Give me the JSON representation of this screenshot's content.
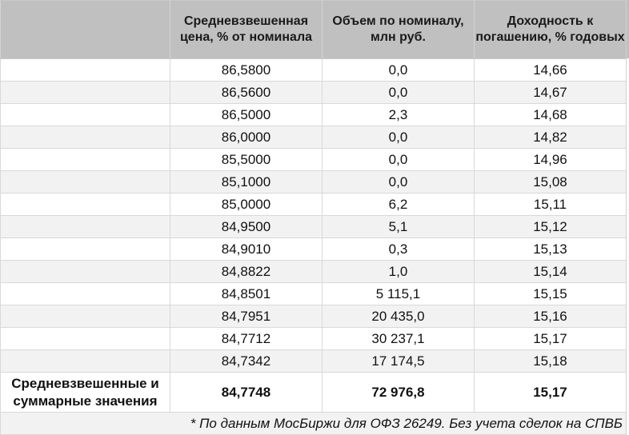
{
  "table": {
    "headers": [
      "",
      "Средневзвешенная цена, % от номинала",
      "Объем по номиналу, млн руб.",
      "Доходность к погашению, % годовых"
    ],
    "rows": [
      {
        "label": "",
        "price": "86,5800",
        "volume": "0,0",
        "yield": "14,66"
      },
      {
        "label": "",
        "price": "86,5600",
        "volume": "0,0",
        "yield": "14,67"
      },
      {
        "label": "",
        "price": "86,5000",
        "volume": "2,3",
        "yield": "14,68"
      },
      {
        "label": "",
        "price": "86,0000",
        "volume": "0,0",
        "yield": "14,82"
      },
      {
        "label": "",
        "price": "85,5000",
        "volume": "0,0",
        "yield": "14,96"
      },
      {
        "label": "",
        "price": "85,1000",
        "volume": "0,0",
        "yield": "15,08"
      },
      {
        "label": "",
        "price": "85,0000",
        "volume": "6,2",
        "yield": "15,11"
      },
      {
        "label": "",
        "price": "84,9500",
        "volume": "5,1",
        "yield": "15,12"
      },
      {
        "label": "",
        "price": "84,9010",
        "volume": "0,3",
        "yield": "15,13"
      },
      {
        "label": "",
        "price": "84,8822",
        "volume": "1,0",
        "yield": "15,14"
      },
      {
        "label": "",
        "price": "84,8501",
        "volume": "5 115,1",
        "yield": "15,15"
      },
      {
        "label": "",
        "price": "84,7951",
        "volume": "20 435,0",
        "yield": "15,16"
      },
      {
        "label": "",
        "price": "84,7712",
        "volume": "30 237,1",
        "yield": "15,17"
      },
      {
        "label": "",
        "price": "84,7342",
        "volume": "17 174,5",
        "yield": "15,18"
      }
    ],
    "total": {
      "label": "Средневзвешенные и суммарные значения",
      "price": "84,7748",
      "volume": "72 976,8",
      "yield": "15,17"
    },
    "footnote": "* По данным МосБиржи для ОФЗ 26249. Без учета сделок на СПВБ"
  }
}
